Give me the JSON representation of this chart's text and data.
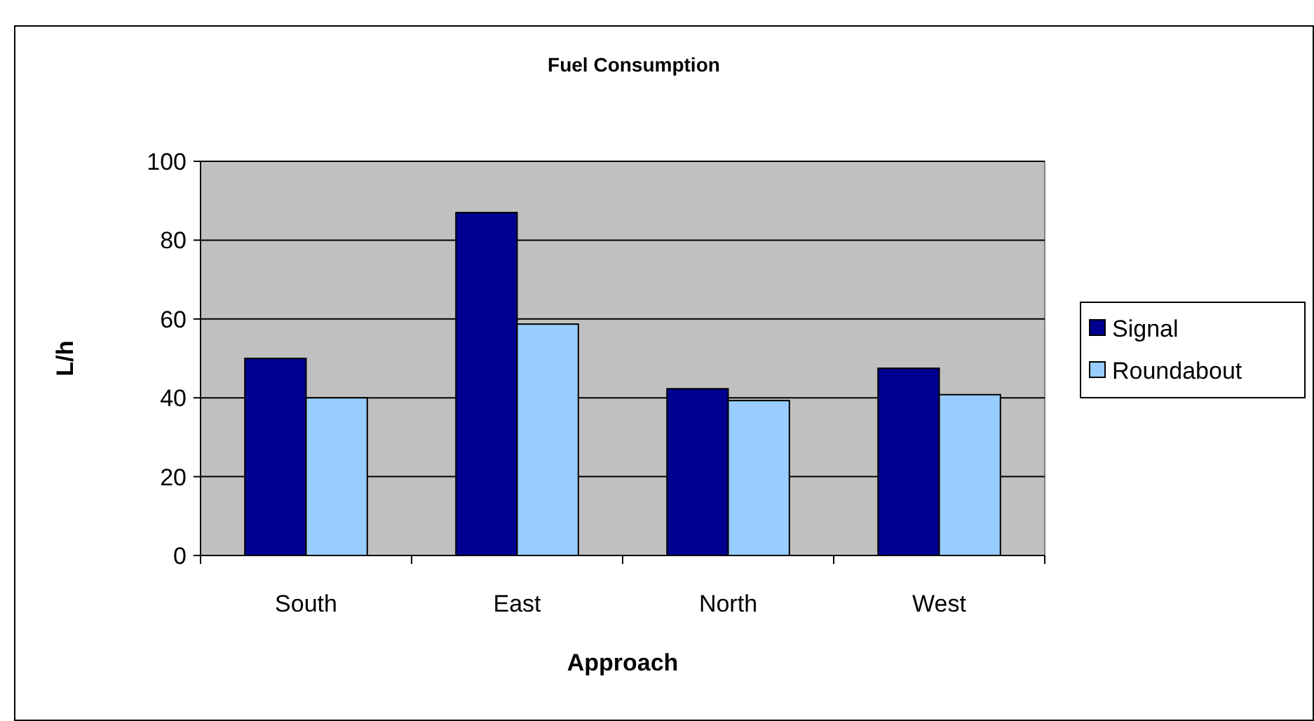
{
  "chart_data": {
    "type": "bar",
    "title": "Fuel Consumption",
    "xlabel": "Approach",
    "ylabel": "L/h",
    "categories": [
      "South",
      "East",
      "North",
      "West"
    ],
    "series": [
      {
        "name": "Signal",
        "color": "#000090",
        "values": [
          50,
          87,
          42.3,
          47.5
        ]
      },
      {
        "name": "Roundabout",
        "color": "#99ccff",
        "values": [
          40,
          58.7,
          39.3,
          40.8
        ]
      }
    ],
    "ylim": [
      0,
      100
    ],
    "yticks": [
      0,
      20,
      40,
      60,
      80,
      100
    ],
    "grid": "y",
    "legend": "right"
  }
}
